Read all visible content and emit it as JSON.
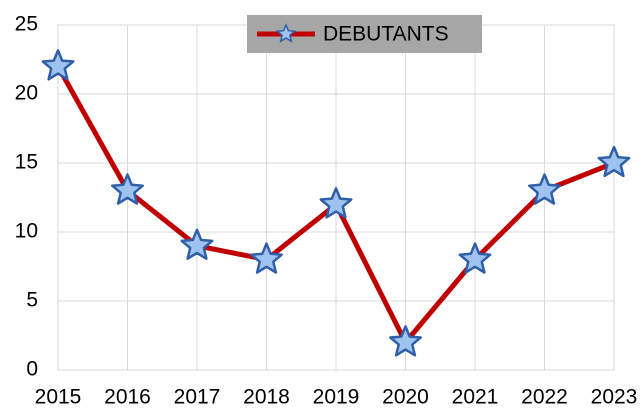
{
  "chart_data": {
    "type": "line",
    "x": [
      2015,
      2016,
      2017,
      2018,
      2019,
      2020,
      2021,
      2022,
      2023
    ],
    "series": [
      {
        "name": "DEBUTANTS",
        "color": "#c00000",
        "values": [
          22,
          13,
          9,
          8,
          12,
          2,
          8,
          13,
          15
        ]
      }
    ],
    "xlim": [
      2015,
      2023
    ],
    "xticks": [
      2015,
      2016,
      2017,
      2018,
      2019,
      2020,
      2021,
      2022,
      2023
    ],
    "ylim": [
      0,
      25
    ],
    "yticks": [
      0,
      5,
      10,
      15,
      20,
      25
    ],
    "grid": true,
    "legend": "top"
  }
}
